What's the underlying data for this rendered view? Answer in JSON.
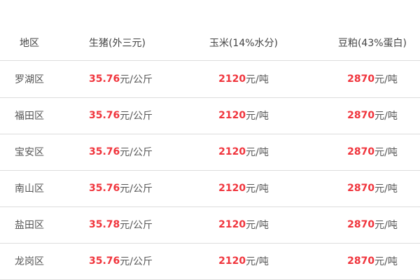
{
  "colors": {
    "price": "#f0343c",
    "text": "#555555",
    "divider": "#dddddd"
  },
  "headers": [
    "地区",
    "生猪(外三元)",
    "玉米(14%水分)",
    "豆粕(43%蛋白)"
  ],
  "rows": [
    {
      "district": "罗湖区",
      "pig": "35.76",
      "pig_unit": "元/公斤",
      "corn": "2120",
      "corn_unit": "元/吨",
      "soy": "2870",
      "soy_unit": "元/吨"
    },
    {
      "district": "福田区",
      "pig": "35.76",
      "pig_unit": "元/公斤",
      "corn": "2120",
      "corn_unit": "元/吨",
      "soy": "2870",
      "soy_unit": "元/吨"
    },
    {
      "district": "宝安区",
      "pig": "35.76",
      "pig_unit": "元/公斤",
      "corn": "2120",
      "corn_unit": "元/吨",
      "soy": "2870",
      "soy_unit": "元/吨"
    },
    {
      "district": "南山区",
      "pig": "35.76",
      "pig_unit": "元/公斤",
      "corn": "2120",
      "corn_unit": "元/吨",
      "soy": "2870",
      "soy_unit": "元/吨"
    },
    {
      "district": "盐田区",
      "pig": "35.78",
      "pig_unit": "元/公斤",
      "corn": "2120",
      "corn_unit": "元/吨",
      "soy": "2870",
      "soy_unit": "元/吨"
    },
    {
      "district": "龙岗区",
      "pig": "35.76",
      "pig_unit": "元/公斤",
      "corn": "2120",
      "corn_unit": "元/吨",
      "soy": "2870",
      "soy_unit": "元/吨"
    }
  ]
}
